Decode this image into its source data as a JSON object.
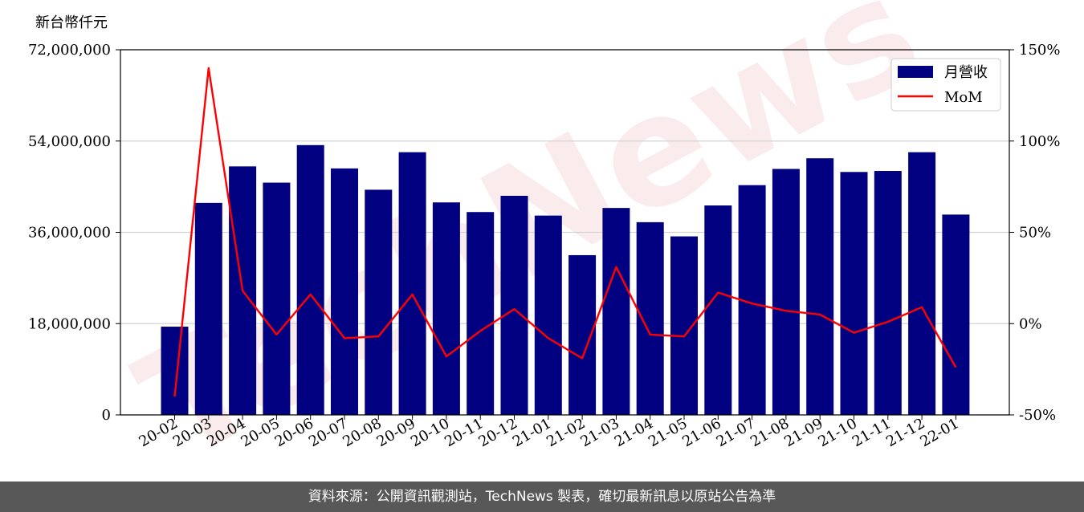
{
  "chart_data": {
    "type": "bar",
    "unit_label": "新台幣仟元",
    "categories": [
      "20-02",
      "20-03",
      "20-04",
      "20-05",
      "20-06",
      "20-07",
      "20-08",
      "20-09",
      "20-10",
      "20-11",
      "20-12",
      "21-01",
      "21-02",
      "21-03",
      "21-04",
      "21-05",
      "21-06",
      "21-07",
      "21-08",
      "21-09",
      "21-10",
      "21-11",
      "21-12",
      "22-01"
    ],
    "series": [
      {
        "name": "月營收",
        "kind": "bar",
        "axis": "left",
        "color": "#000080",
        "values": [
          17400000,
          41800000,
          49000000,
          45800000,
          53200000,
          48600000,
          44400000,
          51800000,
          41900000,
          40000000,
          43200000,
          39300000,
          31500000,
          40800000,
          38000000,
          35200000,
          41300000,
          45300000,
          48500000,
          50600000,
          47900000,
          48100000,
          51800000,
          39500000
        ]
      },
      {
        "name": "MoM",
        "kind": "line",
        "axis": "right",
        "color": "#ff0000",
        "values": [
          -40,
          140,
          18,
          -6,
          16,
          -8,
          -7,
          16,
          -18,
          -4,
          8,
          -8,
          -19,
          31,
          -6,
          -7,
          17,
          11,
          7,
          5,
          -5,
          1,
          9,
          -24
        ]
      }
    ],
    "y_left": {
      "min": 0,
      "max": 72000000,
      "ticks": [
        0,
        18000000,
        36000000,
        54000000,
        72000000
      ],
      "tick_labels": [
        "0",
        "18,000,000",
        "36,000,000",
        "54,000,000",
        "72,000,000"
      ]
    },
    "y_right": {
      "min": -50,
      "max": 150,
      "ticks": [
        -50,
        0,
        50,
        100,
        150
      ],
      "tick_labels": [
        "-50%",
        "0%",
        "50%",
        "100%",
        "150%"
      ]
    },
    "grid": true,
    "legend_position": "top-right",
    "watermark": "TechNews"
  },
  "footer": {
    "text": "資料來源：公開資訊觀測站，TechNews 製表，確切最新訊息以原站公告為準"
  }
}
